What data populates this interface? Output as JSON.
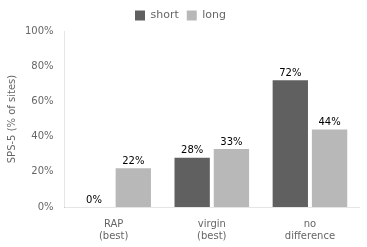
{
  "chart_data": {
    "type": "bar",
    "categories": [
      "RAP\n(best)",
      "virgin\n(best)",
      "no\ndifference"
    ],
    "series": [
      {
        "name": "short",
        "color": "#606060",
        "values": [
          0,
          28,
          72
        ],
        "value_labels": [
          "0%",
          "28%",
          "72%"
        ]
      },
      {
        "name": "long",
        "color": "#b8b8b8",
        "values": [
          22,
          33,
          44
        ],
        "value_labels": [
          "22%",
          "33%",
          "44%"
        ]
      }
    ],
    "ylabel": "SPS-5 (% of sites)",
    "ylim": [
      0,
      100
    ],
    "yticks": [
      {
        "value": 0,
        "label": "0%"
      },
      {
        "value": 20,
        "label": "20%"
      },
      {
        "value": 40,
        "label": "40%"
      },
      {
        "value": 60,
        "label": "60%"
      },
      {
        "value": 80,
        "label": "80%"
      },
      {
        "value": 100,
        "label": "100%"
      }
    ],
    "grid": false,
    "legend": "top",
    "data_labels": true
  }
}
